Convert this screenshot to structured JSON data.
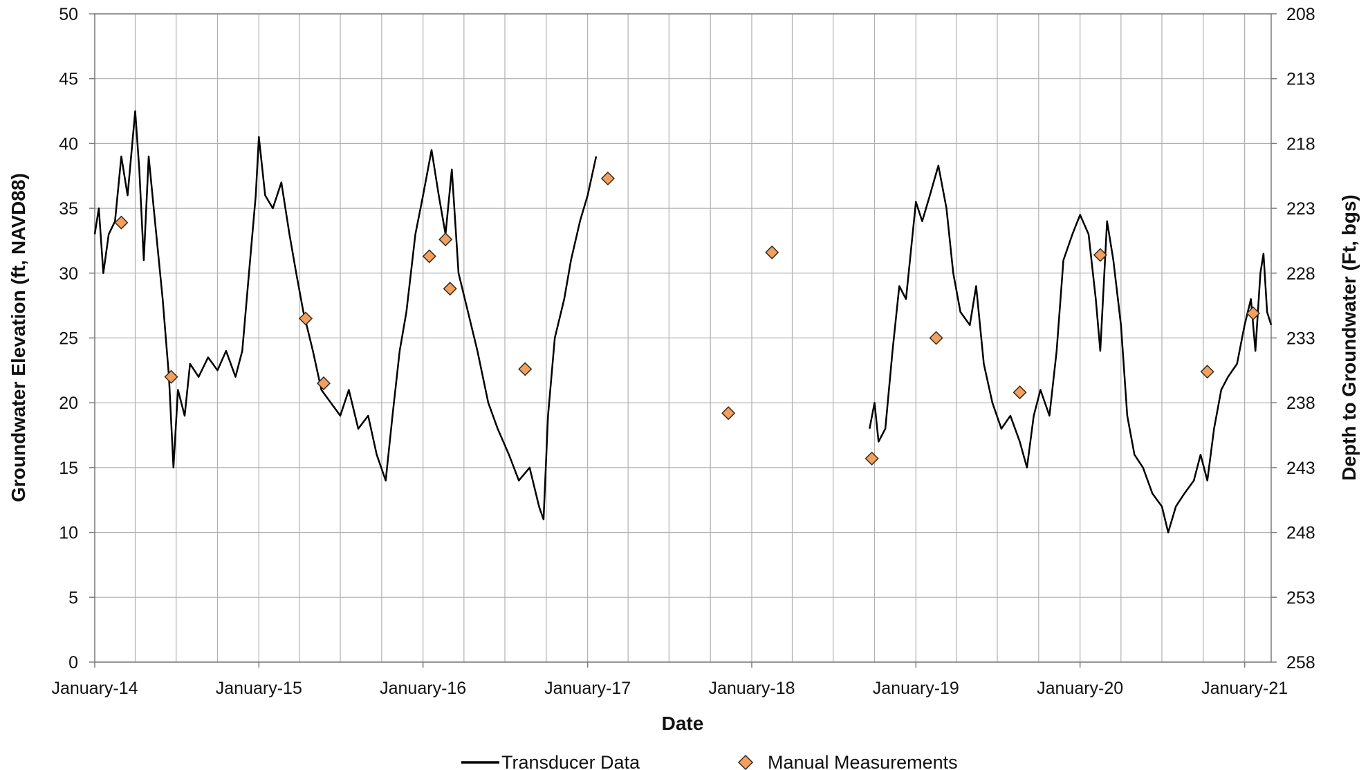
{
  "chart_data": {
    "type": "line",
    "xlabel": "Date",
    "ylabel": "Groundwater Elevation (ft, NAVD88)",
    "y2label": "Depth to Groundwater (Ft, bgs)",
    "xlim": [
      "2014-01-01",
      "2021-03-01"
    ],
    "x_ticks": [
      {
        "date": "2014-01-01",
        "label": "January-14"
      },
      {
        "date": "2015-01-01",
        "label": "January-15"
      },
      {
        "date": "2016-01-01",
        "label": "January-16"
      },
      {
        "date": "2017-01-01",
        "label": "January-17"
      },
      {
        "date": "2018-01-01",
        "label": "January-18"
      },
      {
        "date": "2019-01-01",
        "label": "January-19"
      },
      {
        "date": "2020-01-01",
        "label": "January-20"
      },
      {
        "date": "2021-01-01",
        "label": "January-21"
      }
    ],
    "x_minor_gridlines_months": 3,
    "ylim": [
      0,
      50
    ],
    "y_ticks": [
      0,
      5,
      10,
      15,
      20,
      25,
      30,
      35,
      40,
      45,
      50
    ],
    "y2lim": [
      258,
      208
    ],
    "y2_ticks": [
      258,
      253,
      248,
      243,
      238,
      233,
      228,
      223,
      218,
      213,
      208
    ],
    "grid": true,
    "legend_position": "bottom",
    "series": [
      {
        "name": "Transducer Data",
        "style": "line",
        "color": "#000000",
        "segments": [
          [
            [
              "2014-01-01",
              33
            ],
            [
              "2014-01-10",
              35
            ],
            [
              "2014-01-20",
              30
            ],
            [
              "2014-02-01",
              33
            ],
            [
              "2014-02-15",
              34
            ],
            [
              "2014-03-01",
              39
            ],
            [
              "2014-03-15",
              36
            ],
            [
              "2014-04-01",
              42.5
            ],
            [
              "2014-04-10",
              38
            ],
            [
              "2014-04-20",
              31
            ],
            [
              "2014-05-01",
              39
            ],
            [
              "2014-05-15",
              34
            ],
            [
              "2014-06-01",
              28
            ],
            [
              "2014-06-15",
              22
            ],
            [
              "2014-06-25",
              15
            ],
            [
              "2014-07-05",
              21
            ],
            [
              "2014-07-20",
              19
            ],
            [
              "2014-08-01",
              23
            ],
            [
              "2014-08-20",
              22
            ],
            [
              "2014-09-10",
              23.5
            ],
            [
              "2014-10-01",
              22.5
            ],
            [
              "2014-10-20",
              24
            ],
            [
              "2014-11-10",
              22
            ],
            [
              "2014-11-25",
              24
            ],
            [
              "2014-12-10",
              30
            ],
            [
              "2014-12-25",
              36
            ],
            [
              "2015-01-01",
              40.5
            ],
            [
              "2015-01-15",
              36
            ],
            [
              "2015-02-01",
              35
            ],
            [
              "2015-02-20",
              37
            ],
            [
              "2015-03-10",
              33
            ],
            [
              "2015-03-25",
              30
            ],
            [
              "2015-04-10",
              27
            ],
            [
              "2015-05-01",
              24
            ],
            [
              "2015-05-20",
              21
            ],
            [
              "2015-06-10",
              20
            ],
            [
              "2015-07-01",
              19
            ],
            [
              "2015-07-20",
              21
            ],
            [
              "2015-08-10",
              18
            ],
            [
              "2015-09-01",
              19
            ],
            [
              "2015-09-20",
              16
            ],
            [
              "2015-10-10",
              14
            ],
            [
              "2015-10-25",
              19
            ],
            [
              "2015-11-10",
              24
            ],
            [
              "2015-11-25",
              27
            ],
            [
              "2015-12-15",
              33
            ],
            [
              "2016-01-01",
              36
            ],
            [
              "2016-01-20",
              39.5
            ],
            [
              "2016-02-05",
              36
            ],
            [
              "2016-02-20",
              33
            ],
            [
              "2016-03-05",
              38
            ],
            [
              "2016-03-20",
              30
            ],
            [
              "2016-04-10",
              27
            ],
            [
              "2016-05-01",
              24
            ],
            [
              "2016-05-25",
              20
            ],
            [
              "2016-06-15",
              18
            ],
            [
              "2016-07-10",
              16
            ],
            [
              "2016-08-01",
              14
            ],
            [
              "2016-08-25",
              15
            ],
            [
              "2016-09-15",
              12
            ],
            [
              "2016-09-25",
              11
            ],
            [
              "2016-10-05",
              19
            ],
            [
              "2016-10-20",
              25
            ],
            [
              "2016-11-10",
              28
            ],
            [
              "2016-11-25",
              31
            ],
            [
              "2016-12-15",
              34
            ],
            [
              "2017-01-01",
              36
            ],
            [
              "2017-01-20",
              39
            ]
          ],
          [
            [
              "2018-09-20",
              18
            ],
            [
              "2018-10-01",
              20
            ],
            [
              "2018-10-10",
              17
            ],
            [
              "2018-10-25",
              18
            ],
            [
              "2018-11-10",
              24
            ],
            [
              "2018-11-25",
              29
            ],
            [
              "2018-12-10",
              28
            ],
            [
              "2019-01-01",
              35.5
            ],
            [
              "2019-01-15",
              34
            ],
            [
              "2019-02-01",
              36
            ],
            [
              "2019-02-20",
              38.3
            ],
            [
              "2019-03-10",
              35
            ],
            [
              "2019-03-25",
              30
            ],
            [
              "2019-04-10",
              27
            ],
            [
              "2019-05-01",
              26
            ],
            [
              "2019-05-15",
              29
            ],
            [
              "2019-06-01",
              23
            ],
            [
              "2019-06-20",
              20
            ],
            [
              "2019-07-10",
              18
            ],
            [
              "2019-07-30",
              19
            ],
            [
              "2019-08-20",
              17
            ],
            [
              "2019-09-05",
              15
            ],
            [
              "2019-09-20",
              19
            ],
            [
              "2019-10-05",
              21
            ],
            [
              "2019-10-25",
              19
            ],
            [
              "2019-11-10",
              24
            ],
            [
              "2019-11-25",
              31
            ],
            [
              "2019-12-15",
              33
            ],
            [
              "2020-01-01",
              34.5
            ],
            [
              "2020-01-20",
              33
            ],
            [
              "2020-02-05",
              28
            ],
            [
              "2020-02-15",
              24
            ],
            [
              "2020-03-01",
              34
            ],
            [
              "2020-03-15",
              31
            ],
            [
              "2020-04-01",
              26
            ],
            [
              "2020-04-15",
              19
            ],
            [
              "2020-05-01",
              16
            ],
            [
              "2020-05-20",
              15
            ],
            [
              "2020-06-10",
              13
            ],
            [
              "2020-07-01",
              12
            ],
            [
              "2020-07-15",
              10
            ],
            [
              "2020-08-01",
              12
            ],
            [
              "2020-08-20",
              13
            ],
            [
              "2020-09-10",
              14
            ],
            [
              "2020-09-25",
              16
            ],
            [
              "2020-10-10",
              14
            ],
            [
              "2020-10-25",
              18
            ],
            [
              "2020-11-10",
              21
            ],
            [
              "2020-11-25",
              22
            ],
            [
              "2020-12-15",
              23
            ],
            [
              "2021-01-01",
              26
            ],
            [
              "2021-01-15",
              28
            ],
            [
              "2021-01-25",
              24
            ],
            [
              "2021-02-05",
              30
            ],
            [
              "2021-02-12",
              31.5
            ],
            [
              "2021-02-20",
              27
            ],
            [
              "2021-03-01",
              26
            ]
          ]
        ]
      },
      {
        "name": "Manual Measurements",
        "style": "marker",
        "marker": "diamond",
        "color": "#f0a060",
        "edge_color": "#3a2a1a",
        "points": [
          [
            "2014-03-01",
            33.9
          ],
          [
            "2014-06-20",
            22.0
          ],
          [
            "2015-04-15",
            26.5
          ],
          [
            "2015-05-25",
            21.5
          ],
          [
            "2016-01-15",
            31.3
          ],
          [
            "2016-02-20",
            32.6
          ],
          [
            "2016-03-01",
            28.8
          ],
          [
            "2016-08-15",
            22.6
          ],
          [
            "2017-02-15",
            37.3
          ],
          [
            "2017-11-10",
            19.2
          ],
          [
            "2018-02-15",
            31.6
          ],
          [
            "2018-09-25",
            15.7
          ],
          [
            "2019-02-15",
            25.0
          ],
          [
            "2019-08-20",
            20.8
          ],
          [
            "2020-02-15",
            31.4
          ],
          [
            "2020-10-10",
            22.4
          ],
          [
            "2021-01-20",
            26.9
          ]
        ]
      }
    ]
  }
}
